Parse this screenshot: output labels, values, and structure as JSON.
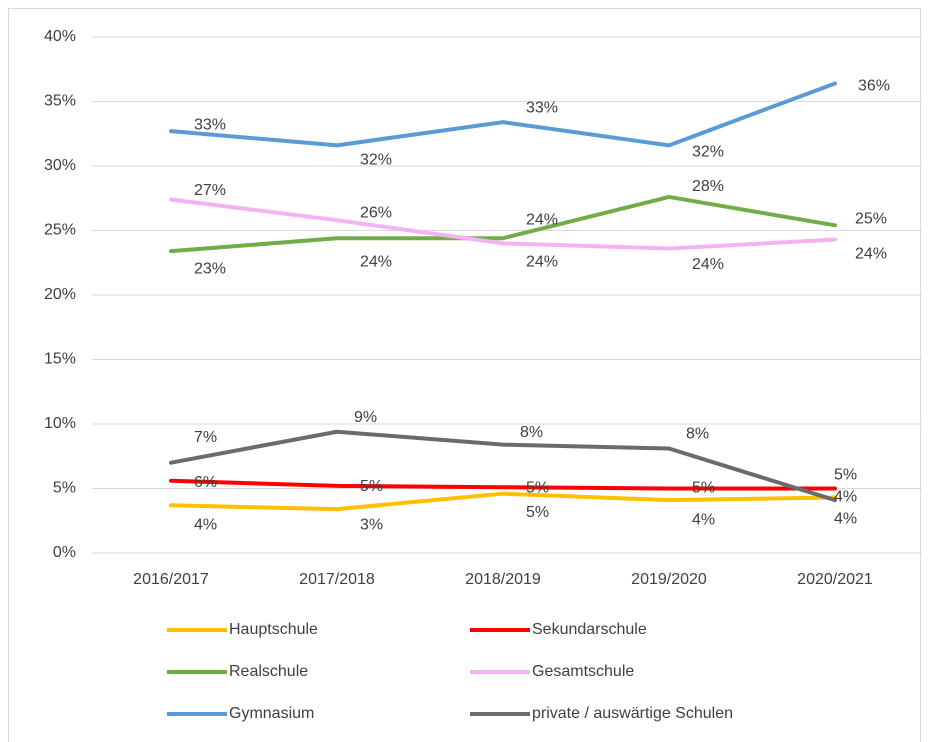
{
  "chart_data": {
    "type": "line",
    "categories": [
      "2016/2017",
      "2017/2018",
      "2018/2019",
      "2019/2020",
      "2020/2021"
    ],
    "ylim": [
      0,
      40
    ],
    "yticks": [
      {
        "value": 0,
        "label": "0%"
      },
      {
        "value": 5,
        "label": "5%"
      },
      {
        "value": 10,
        "label": "10%"
      },
      {
        "value": 15,
        "label": "15%"
      },
      {
        "value": 20,
        "label": "20%"
      },
      {
        "value": 25,
        "label": "25%"
      },
      {
        "value": 30,
        "label": "30%"
      },
      {
        "value": 35,
        "label": "35%"
      },
      {
        "value": 40,
        "label": "40%"
      }
    ],
    "grid": true,
    "legend": "bottom",
    "series": [
      {
        "name": "Hauptschule",
        "color": "#ffc000",
        "values": [
          3.7,
          3.4,
          4.6,
          4.1,
          4.3
        ],
        "value_labels": [
          "4%",
          "3%",
          "5%",
          "4%",
          "4%"
        ]
      },
      {
        "name": "Sekundarschule",
        "color": "#ff0000",
        "values": [
          5.6,
          5.2,
          5.1,
          5.0,
          5.0
        ],
        "value_labels": [
          "6%",
          "5%",
          "5%",
          "5%",
          "5%"
        ]
      },
      {
        "name": "Realschule",
        "color": "#70ad47",
        "values": [
          23.4,
          24.4,
          24.4,
          27.6,
          25.4
        ],
        "value_labels": [
          "23%",
          "24%",
          "24%",
          "28%",
          "25%"
        ]
      },
      {
        "name": "Gesamtschule",
        "color": "#f4b2f2",
        "values": [
          27.4,
          25.8,
          24.0,
          23.6,
          24.3
        ],
        "value_labels": [
          "27%",
          "26%",
          "24%",
          "24%",
          "24%"
        ]
      },
      {
        "name": "Gymnasium",
        "color": "#5b9bd5",
        "values": [
          32.7,
          31.6,
          33.4,
          31.6,
          36.4
        ],
        "value_labels": [
          "33%",
          "32%",
          "33%",
          "32%",
          "36%"
        ]
      },
      {
        "name": "private / auswärtige Schulen",
        "color": "#6b6b6b",
        "values": [
          7.0,
          9.4,
          8.4,
          8.1,
          4.1
        ],
        "value_labels": [
          "7%",
          "9%",
          "8%",
          "8%",
          "4%"
        ]
      }
    ]
  }
}
